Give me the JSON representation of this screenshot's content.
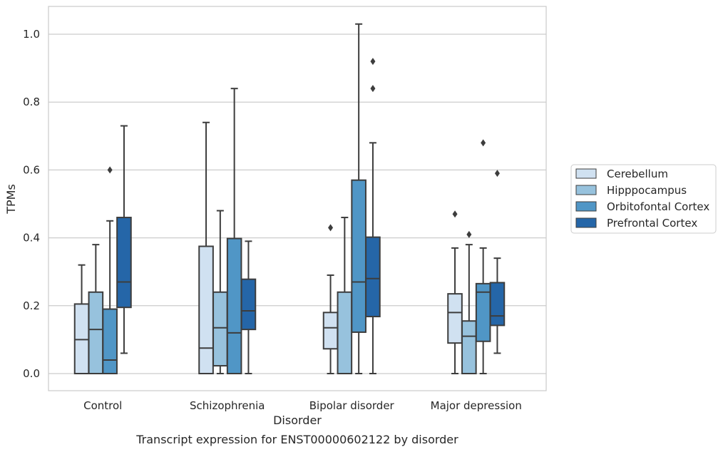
{
  "chart_data": {
    "type": "box",
    "title": "",
    "caption": "Transcript expression for ENST00000602122 by disorder",
    "xlabel": "Disorder",
    "ylabel": "TPMs",
    "ylim": [
      -0.05,
      1.08
    ],
    "yticks": [
      "0.0",
      "0.2",
      "0.4",
      "0.6",
      "0.8",
      "1.0"
    ],
    "categories": [
      "Control",
      "Schizophrenia",
      "Bipolar disorder",
      "Major depression"
    ],
    "grid": "horizontal",
    "legend_position": "right",
    "series": [
      {
        "name": "Cerebellum",
        "color": "#d0e1f1",
        "boxes": [
          {
            "whislo": 0.0,
            "q1": 0.0,
            "med": 0.1,
            "q3": 0.205,
            "whishi": 0.32,
            "fliers": []
          },
          {
            "whislo": 0.0,
            "q1": 0.0,
            "med": 0.075,
            "q3": 0.375,
            "whishi": 0.74,
            "fliers": []
          },
          {
            "whislo": 0.0,
            "q1": 0.073,
            "med": 0.135,
            "q3": 0.18,
            "whishi": 0.29,
            "fliers": [
              0.43
            ]
          },
          {
            "whislo": 0.0,
            "q1": 0.09,
            "med": 0.18,
            "q3": 0.235,
            "whishi": 0.37,
            "fliers": [
              0.47
            ]
          }
        ]
      },
      {
        "name": "Hipppocampus",
        "color": "#97c2dd",
        "boxes": [
          {
            "whislo": 0.0,
            "q1": 0.0,
            "med": 0.13,
            "q3": 0.24,
            "whishi": 0.38,
            "fliers": []
          },
          {
            "whislo": 0.0,
            "q1": 0.023,
            "med": 0.135,
            "q3": 0.24,
            "whishi": 0.48,
            "fliers": []
          },
          {
            "whislo": 0.0,
            "q1": 0.0,
            "med": 0.0,
            "q3": 0.24,
            "whishi": 0.46,
            "fliers": []
          },
          {
            "whislo": 0.0,
            "q1": 0.0,
            "med": 0.11,
            "q3": 0.155,
            "whishi": 0.38,
            "fliers": [
              0.41
            ]
          }
        ]
      },
      {
        "name": "Orbitofontal Cortex",
        "color": "#5096c6",
        "boxes": [
          {
            "whislo": 0.0,
            "q1": 0.0,
            "med": 0.04,
            "q3": 0.19,
            "whishi": 0.45,
            "fliers": [
              0.6
            ]
          },
          {
            "whislo": 0.0,
            "q1": 0.0,
            "med": 0.12,
            "q3": 0.398,
            "whishi": 0.84,
            "fliers": []
          },
          {
            "whislo": 0.0,
            "q1": 0.122,
            "med": 0.27,
            "q3": 0.57,
            "whishi": 1.03,
            "fliers": []
          },
          {
            "whislo": 0.0,
            "q1": 0.095,
            "med": 0.24,
            "q3": 0.265,
            "whishi": 0.37,
            "fliers": [
              0.68
            ]
          }
        ]
      },
      {
        "name": "Prefrontal Cortex",
        "color": "#2566a8",
        "boxes": [
          {
            "whislo": 0.06,
            "q1": 0.195,
            "med": 0.27,
            "q3": 0.46,
            "whishi": 0.73,
            "fliers": []
          },
          {
            "whislo": 0.0,
            "q1": 0.13,
            "med": 0.185,
            "q3": 0.278,
            "whishi": 0.39,
            "fliers": []
          },
          {
            "whislo": 0.0,
            "q1": 0.168,
            "med": 0.28,
            "q3": 0.402,
            "whishi": 0.68,
            "fliers": [
              0.84,
              0.92
            ]
          },
          {
            "whislo": 0.06,
            "q1": 0.142,
            "med": 0.17,
            "q3": 0.268,
            "whishi": 0.34,
            "fliers": [
              0.59
            ]
          }
        ]
      }
    ]
  }
}
